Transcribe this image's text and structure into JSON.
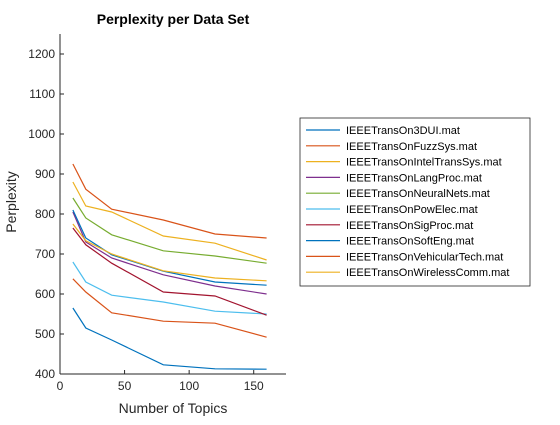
{
  "chart_data": {
    "type": "line",
    "title": "Perplexity per Data Set",
    "xlabel": "Number of Topics",
    "ylabel": "Perplexity",
    "xlim": [
      0,
      175
    ],
    "ylim": [
      400,
      1250
    ],
    "xticks": [
      0,
      50,
      100,
      150
    ],
    "yticks": [
      400,
      500,
      600,
      700,
      800,
      900,
      1000,
      1100,
      1200
    ],
    "grid": false,
    "legend_position": "outside-right",
    "x": [
      10,
      20,
      40,
      80,
      120,
      160
    ],
    "series": [
      {
        "name": "IEEETransOn3DUI.mat",
        "color": "#0072BD",
        "values": [
          565,
          515,
          485,
          423,
          413,
          412
        ]
      },
      {
        "name": "IEEETransOnFuzzSys.mat",
        "color": "#D95319",
        "values": [
          638,
          605,
          553,
          532,
          527,
          492
        ]
      },
      {
        "name": "IEEETransOnIntelTransSys.mat",
        "color": "#EDB120",
        "values": [
          880,
          820,
          805,
          745,
          727,
          685
        ]
      },
      {
        "name": "IEEETransOnLangProc.mat",
        "color": "#7E2F8E",
        "values": [
          805,
          730,
          690,
          648,
          620,
          600
        ]
      },
      {
        "name": "IEEETransOnNeuralNets.mat",
        "color": "#77AC30",
        "values": [
          840,
          790,
          748,
          708,
          695,
          677
        ]
      },
      {
        "name": "IEEETransOnPowElec.mat",
        "color": "#4DBEEE",
        "values": [
          680,
          630,
          597,
          580,
          557,
          550
        ]
      },
      {
        "name": "IEEETransOnSigProc.mat",
        "color": "#A2142F",
        "values": [
          765,
          723,
          677,
          605,
          595,
          547
        ]
      },
      {
        "name": "IEEETransOnSoftEng.mat",
        "color": "#0072BD",
        "values": [
          810,
          740,
          698,
          657,
          630,
          622
        ]
      },
      {
        "name": "IEEETransOnVehicularTech.mat",
        "color": "#D95319",
        "values": [
          925,
          862,
          812,
          785,
          750,
          740
        ]
      },
      {
        "name": "IEEETransOnWirelessComm.mat",
        "color": "#EDB120",
        "values": [
          775,
          733,
          700,
          658,
          640,
          633
        ]
      }
    ]
  }
}
